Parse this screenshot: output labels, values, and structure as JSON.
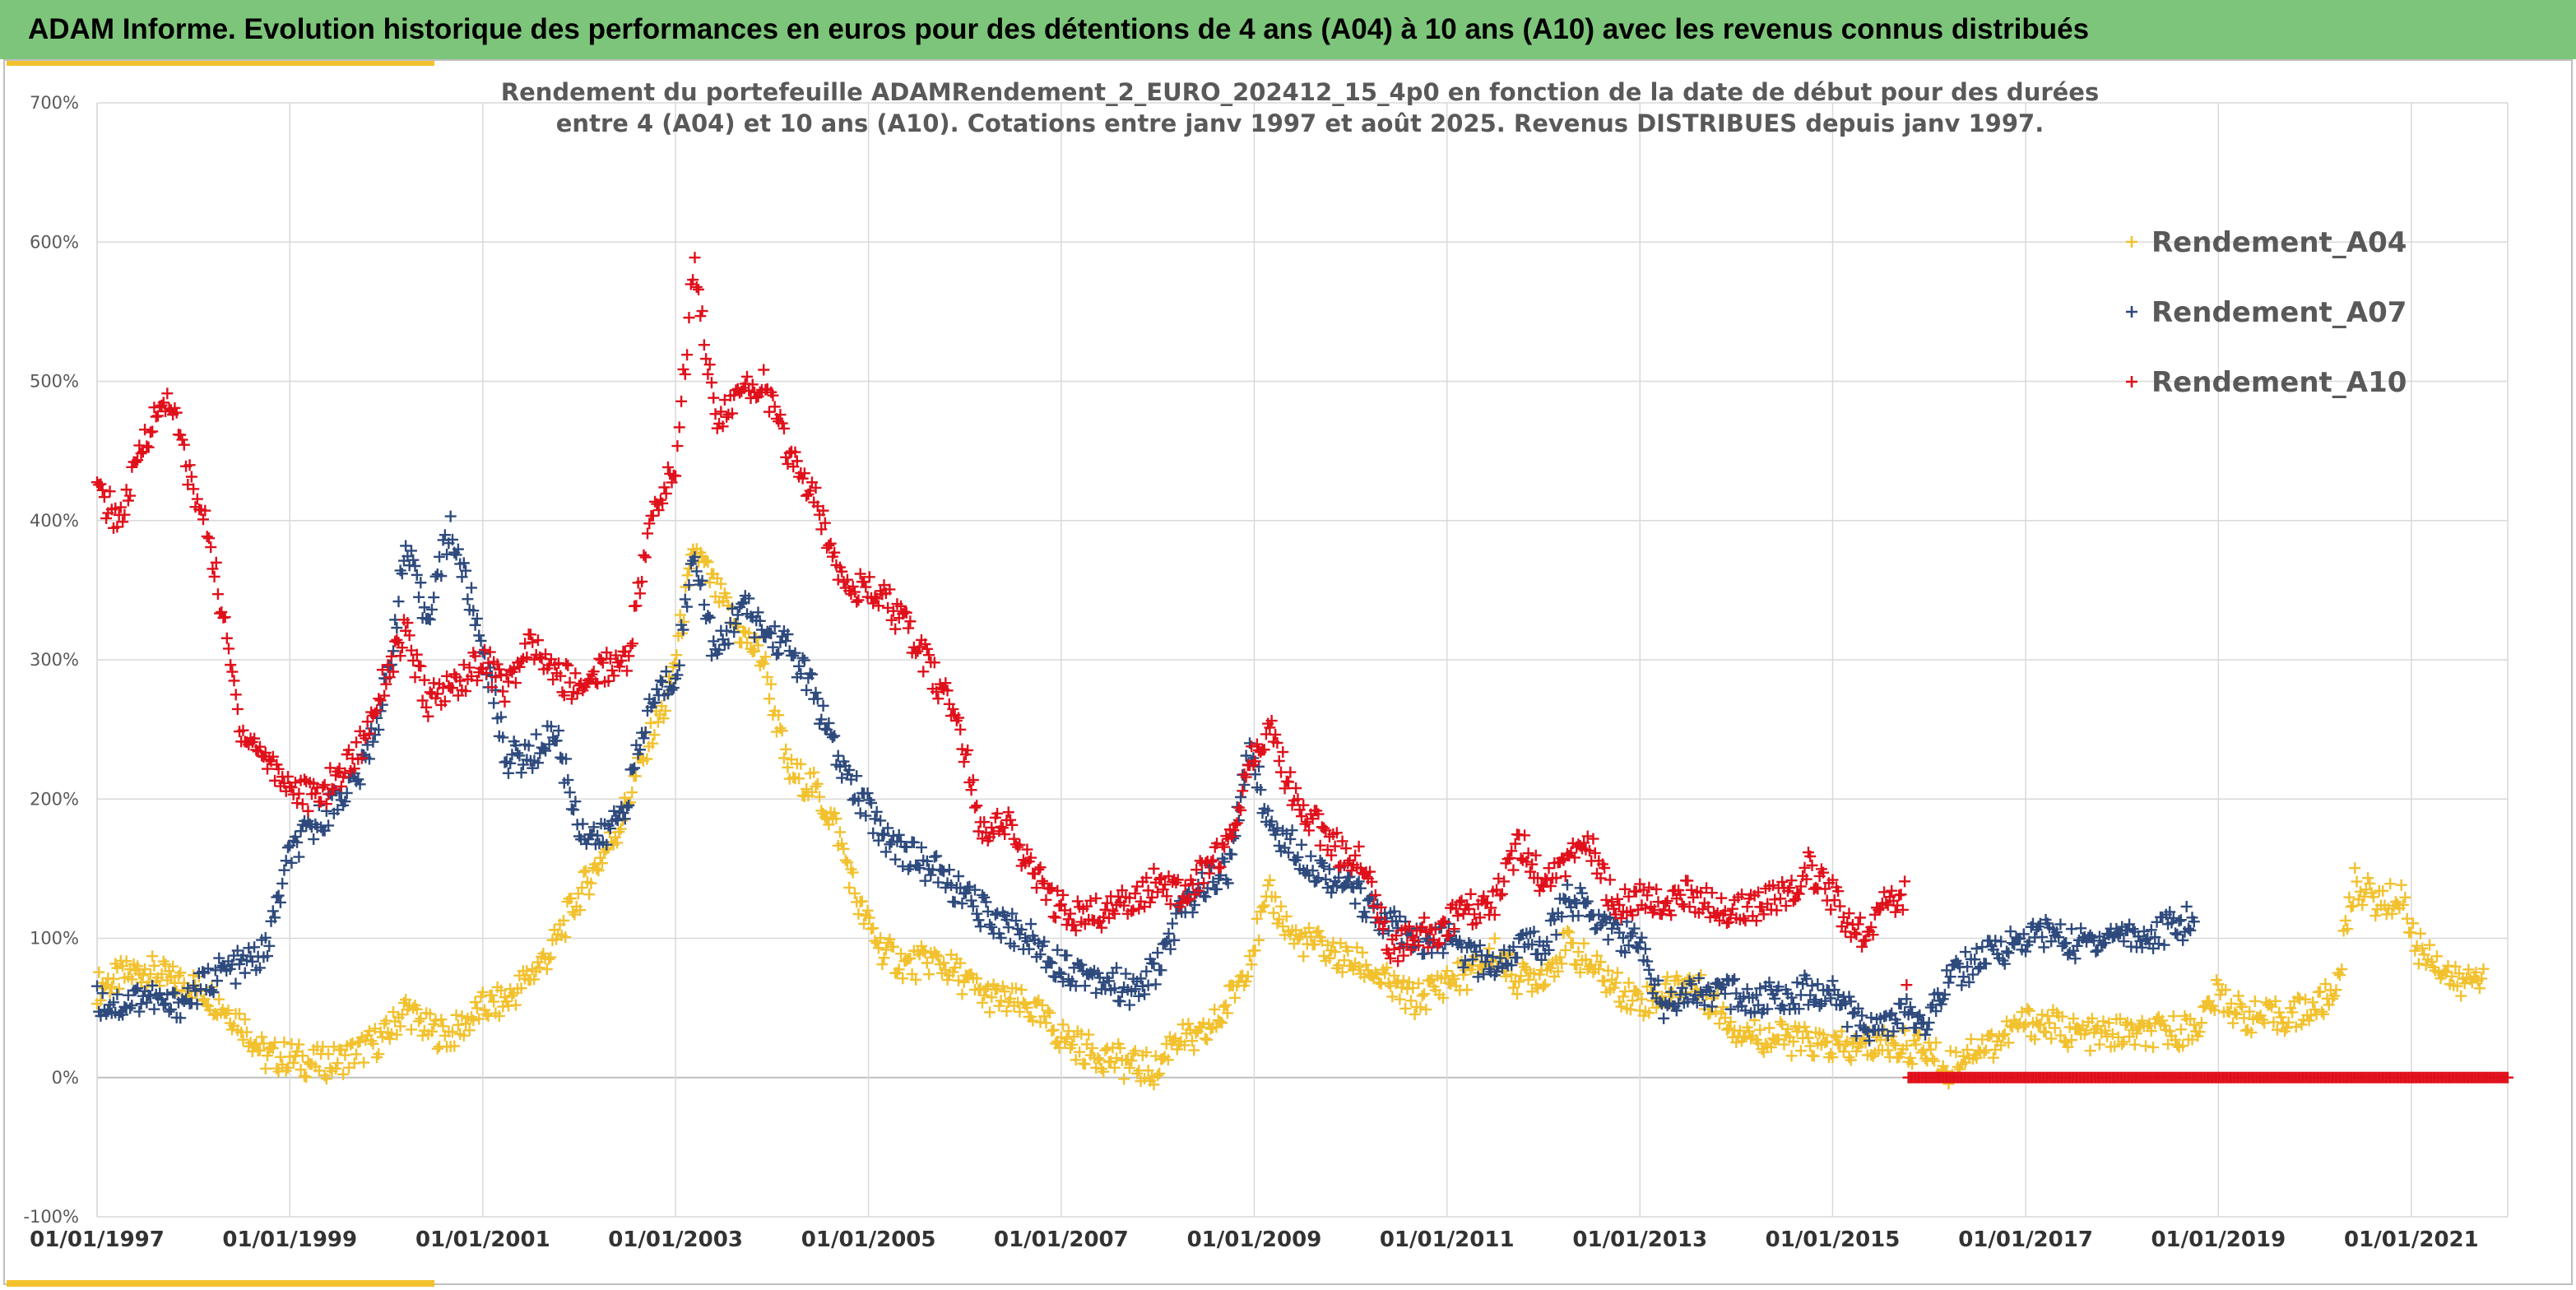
{
  "banner": {
    "title": "ADAM Informe. Evolution historique des performances en euros pour des détentions de 4 ans (A04) à 10 ans (A10) avec les revenus connus distribués"
  },
  "colors": {
    "banner_bg": "#7dc57a",
    "accent_bar": "#f2c12e",
    "A04": "#f2c12e",
    "A07": "#2e4a7d",
    "A10": "#e0101b",
    "grid": "#d9d9d9",
    "zero_line": "#bfbfbf"
  },
  "chart_data": {
    "type": "scatter",
    "title_lines": [
      "Rendement du portefeuille ADAMRendement_2_EURO_202412_15_4p0  en fonction de la date de début pour des durées",
      "entre 4 (A04) et 10 ans (A10). Cotations entre janv 1997 et août 2025. Revenus DISTRIBUES depuis janv 1997."
    ],
    "xlim": [
      "1997-01-01",
      "2022-01-01"
    ],
    "ylim": [
      -100,
      700
    ],
    "y_ticks": [
      "-100%",
      "0%",
      "100%",
      "200%",
      "300%",
      "400%",
      "500%",
      "600%",
      "700%"
    ],
    "x_ticks": [
      "01/01/1997",
      "01/01/1999",
      "01/01/2001",
      "01/01/2003",
      "01/01/2005",
      "01/01/2007",
      "01/01/2009",
      "01/01/2011",
      "01/01/2013",
      "01/01/2015",
      "01/01/2017",
      "01/01/2019",
      "01/01/2021"
    ],
    "grid": true,
    "legend_position": "top-right",
    "marker": "+",
    "series": [
      {
        "name": "Rendement_A04",
        "color": "#f2c12e",
        "points": [
          [
            "1997-01-01",
            65
          ],
          [
            "1997-04-01",
            72
          ],
          [
            "1997-07-01",
            78
          ],
          [
            "1997-10-01",
            70
          ],
          [
            "1998-01-01",
            66
          ],
          [
            "1998-04-01",
            55
          ],
          [
            "1998-07-01",
            40
          ],
          [
            "1998-10-01",
            15
          ],
          [
            "1999-01-01",
            15
          ],
          [
            "1999-04-01",
            10
          ],
          [
            "1999-07-01",
            12
          ],
          [
            "1999-10-01",
            20
          ],
          [
            "2000-01-01",
            30
          ],
          [
            "2000-03-15",
            50
          ],
          [
            "2000-06-01",
            35
          ],
          [
            "2000-09-01",
            30
          ],
          [
            "2001-01-01",
            50
          ],
          [
            "2001-04-01",
            55
          ],
          [
            "2001-09-15",
            90
          ],
          [
            "2001-12-01",
            120
          ],
          [
            "2002-03-01",
            150
          ],
          [
            "2002-06-01",
            180
          ],
          [
            "2002-09-15",
            240
          ],
          [
            "2002-12-01",
            270
          ],
          [
            "2003-03-15",
            380
          ],
          [
            "2003-06-01",
            350
          ],
          [
            "2003-09-01",
            320
          ],
          [
            "2003-12-01",
            300
          ],
          [
            "2004-03-01",
            220
          ],
          [
            "2004-06-01",
            210
          ],
          [
            "2004-09-01",
            180
          ],
          [
            "2004-12-01",
            120
          ],
          [
            "2005-03-01",
            90
          ],
          [
            "2005-06-01",
            80
          ],
          [
            "2005-09-01",
            85
          ],
          [
            "2005-12-01",
            75
          ],
          [
            "2006-03-01",
            60
          ],
          [
            "2006-06-01",
            55
          ],
          [
            "2006-09-01",
            50
          ],
          [
            "2007-01-01",
            30
          ],
          [
            "2007-04-01",
            20
          ],
          [
            "2007-07-01",
            15
          ],
          [
            "2007-10-01",
            8
          ],
          [
            "2008-01-01",
            5
          ],
          [
            "2008-03-01",
            30
          ],
          [
            "2008-06-01",
            25
          ],
          [
            "2008-09-01",
            45
          ],
          [
            "2008-12-01",
            80
          ],
          [
            "2009-03-01",
            130
          ],
          [
            "2009-06-01",
            100
          ],
          [
            "2009-09-01",
            95
          ],
          [
            "2009-12-01",
            85
          ],
          [
            "2010-03-01",
            80
          ],
          [
            "2010-06-01",
            65
          ],
          [
            "2010-09-01",
            55
          ],
          [
            "2011-01-01",
            70
          ],
          [
            "2011-04-01",
            75
          ],
          [
            "2011-07-01",
            90
          ],
          [
            "2011-10-01",
            70
          ],
          [
            "2012-01-01",
            75
          ],
          [
            "2012-04-01",
            95
          ],
          [
            "2012-07-01",
            80
          ],
          [
            "2012-10-01",
            65
          ],
          [
            "2013-01-01",
            55
          ],
          [
            "2013-04-01",
            60
          ],
          [
            "2013-07-01",
            70
          ],
          [
            "2013-10-01",
            55
          ],
          [
            "2014-01-01",
            35
          ],
          [
            "2014-04-01",
            30
          ],
          [
            "2014-07-01",
            28
          ],
          [
            "2014-10-01",
            25
          ],
          [
            "2015-01-01",
            22
          ],
          [
            "2015-04-01",
            20
          ],
          [
            "2015-07-01",
            25
          ],
          [
            "2015-10-01",
            22
          ],
          [
            "2016-01-01",
            20
          ],
          [
            "2016-03-01",
            5
          ],
          [
            "2016-06-01",
            20
          ],
          [
            "2016-09-01",
            25
          ],
          [
            "2017-01-01",
            40
          ],
          [
            "2017-04-01",
            38
          ],
          [
            "2017-07-01",
            32
          ],
          [
            "2017-10-01",
            30
          ],
          [
            "2018-01-01",
            32
          ],
          [
            "2018-04-01",
            30
          ],
          [
            "2018-07-01",
            33
          ],
          [
            "2018-10-01",
            35
          ],
          [
            "2019-01-01",
            60
          ],
          [
            "2019-04-01",
            45
          ],
          [
            "2019-07-01",
            42
          ],
          [
            "2019-10-01",
            45
          ],
          [
            "2020-01-01",
            50
          ],
          [
            "2020-03-15",
            60
          ],
          [
            "2020-06-01",
            140
          ],
          [
            "2020-09-01",
            125
          ],
          [
            "2020-12-01",
            130
          ],
          [
            "2021-01-15",
            95
          ],
          [
            "2021-04-01",
            85
          ],
          [
            "2021-07-01",
            65
          ],
          [
            "2021-10-01",
            78
          ]
        ]
      },
      {
        "name": "Rendement_A07",
        "color": "#2e4a7d",
        "points": [
          [
            "1997-01-01",
            55
          ],
          [
            "1997-04-01",
            52
          ],
          [
            "1997-07-01",
            60
          ],
          [
            "1997-10-01",
            50
          ],
          [
            "1998-01-01",
            60
          ],
          [
            "1998-04-01",
            75
          ],
          [
            "1998-07-01",
            80
          ],
          [
            "1998-10-01",
            90
          ],
          [
            "1999-01-01",
            160
          ],
          [
            "1999-04-01",
            180
          ],
          [
            "1999-07-01",
            200
          ],
          [
            "1999-10-01",
            220
          ],
          [
            "2000-01-01",
            280
          ],
          [
            "2000-03-15",
            380
          ],
          [
            "2000-06-01",
            330
          ],
          [
            "2000-09-01",
            395
          ],
          [
            "2001-01-01",
            310
          ],
          [
            "2001-04-01",
            230
          ],
          [
            "2001-07-01",
            230
          ],
          [
            "2001-10-01",
            250
          ],
          [
            "2002-01-01",
            180
          ],
          [
            "2002-04-01",
            170
          ],
          [
            "2002-07-01",
            200
          ],
          [
            "2002-10-01",
            270
          ],
          [
            "2003-01-01",
            290
          ],
          [
            "2003-03-15",
            380
          ],
          [
            "2003-06-01",
            300
          ],
          [
            "2003-09-01",
            340
          ],
          [
            "2003-12-01",
            320
          ],
          [
            "2004-03-01",
            310
          ],
          [
            "2004-06-01",
            280
          ],
          [
            "2004-09-01",
            230
          ],
          [
            "2004-12-01",
            200
          ],
          [
            "2005-03-01",
            175
          ],
          [
            "2005-06-01",
            160
          ],
          [
            "2005-09-01",
            150
          ],
          [
            "2005-12-01",
            135
          ],
          [
            "2006-03-01",
            120
          ],
          [
            "2006-06-01",
            110
          ],
          [
            "2006-09-01",
            100
          ],
          [
            "2007-01-01",
            80
          ],
          [
            "2007-04-01",
            75
          ],
          [
            "2007-07-01",
            70
          ],
          [
            "2007-10-01",
            60
          ],
          [
            "2008-01-01",
            80
          ],
          [
            "2008-04-01",
            120
          ],
          [
            "2008-07-01",
            140
          ],
          [
            "2008-10-01",
            150
          ],
          [
            "2008-12-15",
            240
          ],
          [
            "2009-03-01",
            180
          ],
          [
            "2009-06-01",
            165
          ],
          [
            "2009-09-01",
            150
          ],
          [
            "2009-12-01",
            140
          ],
          [
            "2010-03-01",
            125
          ],
          [
            "2010-06-01",
            110
          ],
          [
            "2010-09-01",
            95
          ],
          [
            "2011-01-01",
            100
          ],
          [
            "2011-04-01",
            85
          ],
          [
            "2011-07-01",
            80
          ],
          [
            "2011-10-01",
            95
          ],
          [
            "2012-01-01",
            95
          ],
          [
            "2012-04-01",
            130
          ],
          [
            "2012-07-01",
            120
          ],
          [
            "2012-10-01",
            105
          ],
          [
            "2013-01-01",
            95
          ],
          [
            "2013-04-01",
            50
          ],
          [
            "2013-07-01",
            65
          ],
          [
            "2013-10-01",
            60
          ],
          [
            "2014-01-01",
            60
          ],
          [
            "2014-04-01",
            55
          ],
          [
            "2014-07-01",
            60
          ],
          [
            "2014-10-01",
            62
          ],
          [
            "2015-01-01",
            60
          ],
          [
            "2015-04-01",
            40
          ],
          [
            "2015-07-01",
            35
          ],
          [
            "2015-10-01",
            45
          ],
          [
            "2016-01-01",
            40
          ],
          [
            "2016-03-01",
            70
          ],
          [
            "2016-06-01",
            80
          ],
          [
            "2016-09-01",
            90
          ],
          [
            "2017-01-01",
            100
          ],
          [
            "2017-04-01",
            105
          ],
          [
            "2017-07-01",
            95
          ],
          [
            "2017-10-01",
            100
          ],
          [
            "2018-01-01",
            105
          ],
          [
            "2018-04-01",
            100
          ],
          [
            "2018-07-01",
            108
          ],
          [
            "2018-10-01",
            112
          ]
        ]
      },
      {
        "name": "Rendement_A10",
        "color": "#e0101b",
        "points": [
          [
            "1997-01-01",
            420
          ],
          [
            "1997-04-01",
            400
          ],
          [
            "1997-07-01",
            460
          ],
          [
            "1997-10-01",
            490
          ],
          [
            "1998-01-01",
            420
          ],
          [
            "1998-03-01",
            390
          ],
          [
            "1998-05-01",
            320
          ],
          [
            "1998-07-01",
            250
          ],
          [
            "1998-10-01",
            230
          ],
          [
            "1999-01-01",
            210
          ],
          [
            "1999-04-01",
            200
          ],
          [
            "1999-07-01",
            215
          ],
          [
            "1999-10-01",
            240
          ],
          [
            "2000-01-01",
            290
          ],
          [
            "2000-03-15",
            320
          ],
          [
            "2000-06-01",
            270
          ],
          [
            "2000-09-01",
            280
          ],
          [
            "2001-01-01",
            300
          ],
          [
            "2001-04-01",
            280
          ],
          [
            "2001-07-01",
            310
          ],
          [
            "2001-10-01",
            290
          ],
          [
            "2002-01-01",
            280
          ],
          [
            "2002-04-01",
            295
          ],
          [
            "2002-07-01",
            300
          ],
          [
            "2002-10-01",
            400
          ],
          [
            "2003-01-01",
            440
          ],
          [
            "2003-03-15",
            590
          ],
          [
            "2003-06-01",
            470
          ],
          [
            "2003-09-01",
            490
          ],
          [
            "2003-12-01",
            500
          ],
          [
            "2004-03-01",
            450
          ],
          [
            "2004-06-01",
            420
          ],
          [
            "2004-09-01",
            370
          ],
          [
            "2004-12-01",
            350
          ],
          [
            "2005-03-01",
            345
          ],
          [
            "2005-06-01",
            320
          ],
          [
            "2005-09-01",
            290
          ],
          [
            "2005-12-01",
            260
          ],
          [
            "2006-03-01",
            180
          ],
          [
            "2006-06-01",
            185
          ],
          [
            "2006-09-01",
            150
          ],
          [
            "2007-01-01",
            120
          ],
          [
            "2007-04-01",
            115
          ],
          [
            "2007-07-01",
            120
          ],
          [
            "2007-10-01",
            130
          ],
          [
            "2008-01-01",
            140
          ],
          [
            "2008-04-01",
            130
          ],
          [
            "2008-07-01",
            150
          ],
          [
            "2008-10-01",
            170
          ],
          [
            "2008-12-15",
            230
          ],
          [
            "2009-03-01",
            250
          ],
          [
            "2009-06-01",
            200
          ],
          [
            "2009-09-01",
            180
          ],
          [
            "2009-12-01",
            160
          ],
          [
            "2010-03-01",
            155
          ],
          [
            "2010-06-01",
            90
          ],
          [
            "2010-09-01",
            100
          ],
          [
            "2011-01-01",
            110
          ],
          [
            "2011-04-01",
            120
          ],
          [
            "2011-07-01",
            125
          ],
          [
            "2011-10-01",
            170
          ],
          [
            "2012-01-01",
            140
          ],
          [
            "2012-04-01",
            155
          ],
          [
            "2012-07-01",
            165
          ],
          [
            "2012-10-01",
            120
          ],
          [
            "2013-01-01",
            130
          ],
          [
            "2013-04-01",
            125
          ],
          [
            "2013-07-01",
            130
          ],
          [
            "2013-10-01",
            125
          ],
          [
            "2014-01-01",
            120
          ],
          [
            "2014-04-01",
            125
          ],
          [
            "2014-07-01",
            130
          ],
          [
            "2014-10-01",
            150
          ],
          [
            "2015-01-01",
            130
          ],
          [
            "2015-04-01",
            100
          ],
          [
            "2015-07-01",
            120
          ],
          [
            "2015-10-01",
            130
          ],
          [
            "2015-10-15",
            0
          ],
          [
            "2017-01-01",
            0
          ],
          [
            "2019-01-01",
            0
          ],
          [
            "2021-01-01",
            0
          ],
          [
            "2022-01-01",
            0
          ]
        ]
      }
    ]
  }
}
